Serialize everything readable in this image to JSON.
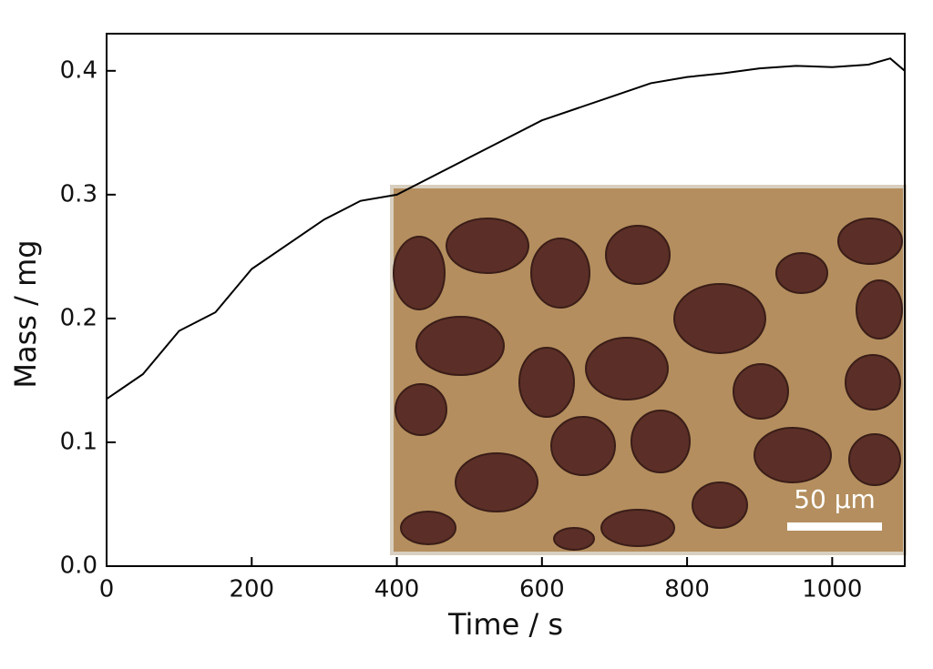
{
  "chart_data": {
    "type": "line",
    "xlabel": "Time / s",
    "ylabel": "Mass / mg",
    "x": [
      0,
      50,
      100,
      150,
      200,
      250,
      300,
      350,
      400,
      450,
      500,
      550,
      600,
      650,
      700,
      750,
      800,
      850,
      900,
      950,
      1000,
      1050,
      1080,
      1100
    ],
    "values": [
      0.135,
      0.155,
      0.19,
      0.205,
      0.24,
      0.26,
      0.28,
      0.295,
      0.3,
      0.315,
      0.33,
      0.345,
      0.36,
      0.37,
      0.38,
      0.39,
      0.395,
      0.398,
      0.402,
      0.404,
      0.403,
      0.405,
      0.41,
      0.4
    ],
    "color": "#000000",
    "xlim": [
      0,
      1100
    ],
    "xticks": [
      0,
      200,
      400,
      600,
      800,
      1000
    ],
    "ylim": [
      0,
      0.43
    ],
    "yticks": [
      {
        "value": 0,
        "label": "0.0"
      },
      0.1,
      0.2,
      0.3,
      0.4
    ],
    "inset_scale_label": "50 µm"
  }
}
